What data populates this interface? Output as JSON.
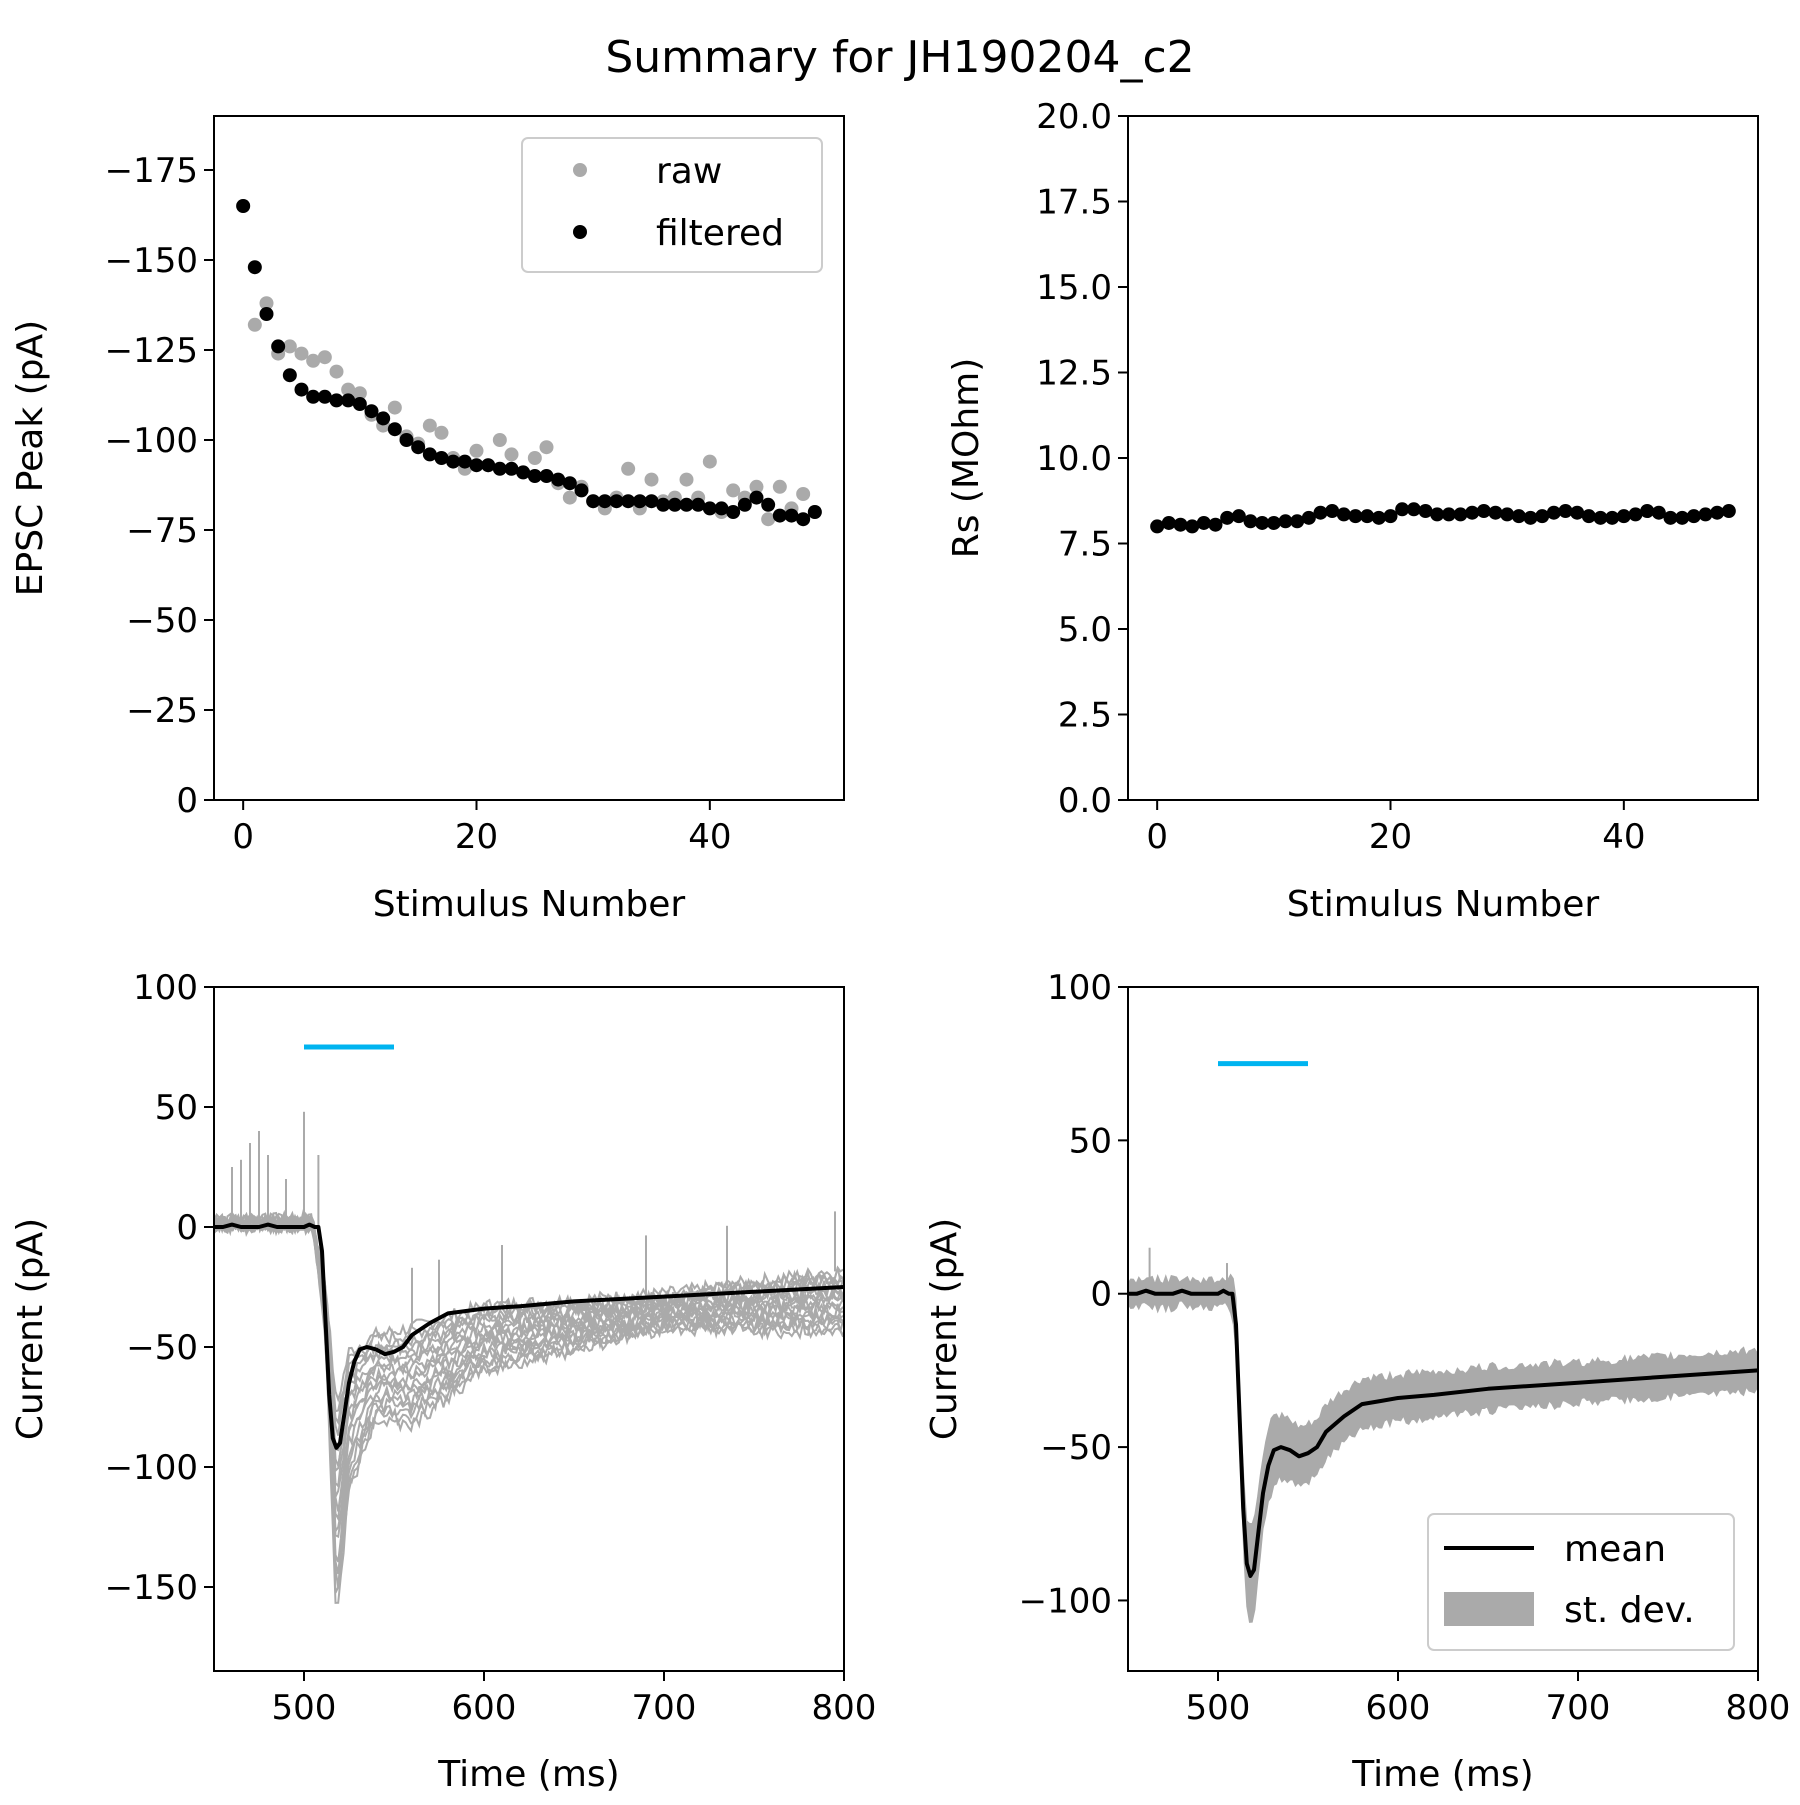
{
  "figure_title": "Summary for JH190204_c2",
  "colors": {
    "raw": "#aaaaaa",
    "filtered": "#000000",
    "mean": "#000000",
    "stdev": "#aaaaaa",
    "stim": "#00b4f0",
    "trace": "#aaaaaa"
  },
  "chart_data": [
    {
      "id": "epsc",
      "type": "scatter",
      "xlabel": "Stimulus Number",
      "ylabel": "EPSC Peak (pA)",
      "xlim": [
        -2.5,
        51.5
      ],
      "ylim": [
        0,
        -190
      ],
      "xticks": [
        0,
        20,
        40
      ],
      "xtick_labels": [
        "0",
        "20",
        "40"
      ],
      "yticks": [
        0,
        -25,
        -50,
        -75,
        -100,
        -125,
        -150,
        -175
      ],
      "ytick_labels": [
        "0",
        "−25",
        "−50",
        "−75",
        "−100",
        "−125",
        "−150",
        "−175"
      ],
      "legend": {
        "placement": "top-right",
        "entries": [
          "raw",
          "filtered"
        ]
      },
      "series": [
        {
          "name": "raw",
          "x": [
            0,
            1,
            2,
            3,
            4,
            5,
            6,
            7,
            8,
            9,
            10,
            11,
            12,
            13,
            14,
            15,
            16,
            17,
            18,
            19,
            20,
            21,
            22,
            23,
            24,
            25,
            26,
            27,
            28,
            29,
            30,
            31,
            32,
            33,
            34,
            35,
            36,
            37,
            38,
            39,
            40,
            41,
            42,
            43,
            44,
            45,
            46,
            47,
            48,
            49
          ],
          "values": [
            -165,
            -132,
            -138,
            -124,
            -126,
            -124,
            -122,
            -123,
            -119,
            -114,
            -113,
            -107,
            -104,
            -109,
            -101,
            -99,
            -104,
            -102,
            -95,
            -92,
            -97,
            -93,
            -100,
            -96,
            -91,
            -95,
            -98,
            -88,
            -84,
            -87,
            -83,
            -81,
            -84,
            -92,
            -81,
            -89,
            -83,
            -84,
            -89,
            -84,
            -94,
            -80,
            -86,
            -84,
            -87,
            -78,
            -87,
            -81,
            -85,
            -80
          ]
        },
        {
          "name": "filtered",
          "x": [
            0,
            1,
            2,
            3,
            4,
            5,
            6,
            7,
            8,
            9,
            10,
            11,
            12,
            13,
            14,
            15,
            16,
            17,
            18,
            19,
            20,
            21,
            22,
            23,
            24,
            25,
            26,
            27,
            28,
            29,
            30,
            31,
            32,
            33,
            34,
            35,
            36,
            37,
            38,
            39,
            40,
            41,
            42,
            43,
            44,
            45,
            46,
            47,
            48,
            49
          ],
          "values": [
            -165,
            -148,
            -135,
            -126,
            -118,
            -114,
            -112,
            -112,
            -111,
            -111,
            -110,
            -108,
            -106,
            -103,
            -100,
            -98,
            -96,
            -95,
            -94,
            -94,
            -93,
            -93,
            -92,
            -92,
            -91,
            -90,
            -90,
            -89,
            -88,
            -86,
            -83,
            -83,
            -83,
            -83,
            -83,
            -83,
            -82,
            -82,
            -82,
            -82,
            -81,
            -81,
            -80,
            -82,
            -84,
            -82,
            -79,
            -79,
            -78,
            -80
          ]
        }
      ]
    },
    {
      "id": "rs",
      "type": "scatter",
      "xlabel": "Stimulus Number",
      "ylabel": "Rs (MOhm)",
      "xlim": [
        -2.5,
        51.5
      ],
      "ylim": [
        0,
        20
      ],
      "xticks": [
        0,
        20,
        40
      ],
      "xtick_labels": [
        "0",
        "20",
        "40"
      ],
      "yticks": [
        0,
        2.5,
        5,
        7.5,
        10,
        12.5,
        15,
        17.5,
        20
      ],
      "ytick_labels": [
        "0.0",
        "2.5",
        "5.0",
        "7.5",
        "10.0",
        "12.5",
        "15.0",
        "17.5",
        "20.0"
      ],
      "series": [
        {
          "name": "Rs",
          "x": [
            0,
            1,
            2,
            3,
            4,
            5,
            6,
            7,
            8,
            9,
            10,
            11,
            12,
            13,
            14,
            15,
            16,
            17,
            18,
            19,
            20,
            21,
            22,
            23,
            24,
            25,
            26,
            27,
            28,
            29,
            30,
            31,
            32,
            33,
            34,
            35,
            36,
            37,
            38,
            39,
            40,
            41,
            42,
            43,
            44,
            45,
            46,
            47,
            48,
            49
          ],
          "values": [
            8.0,
            8.1,
            8.05,
            8.0,
            8.1,
            8.05,
            8.25,
            8.3,
            8.15,
            8.1,
            8.1,
            8.15,
            8.15,
            8.25,
            8.4,
            8.45,
            8.35,
            8.3,
            8.3,
            8.25,
            8.3,
            8.5,
            8.5,
            8.45,
            8.35,
            8.35,
            8.35,
            8.4,
            8.45,
            8.4,
            8.35,
            8.3,
            8.25,
            8.3,
            8.4,
            8.45,
            8.4,
            8.3,
            8.25,
            8.25,
            8.3,
            8.35,
            8.45,
            8.4,
            8.25,
            8.25,
            8.3,
            8.35,
            8.4,
            8.45
          ]
        }
      ]
    },
    {
      "id": "traces",
      "type": "line",
      "xlabel": "Time (ms)",
      "ylabel": "Current (pA)",
      "xlim": [
        450,
        800
      ],
      "ylim": [
        -185,
        100
      ],
      "xticks": [
        500,
        600,
        700,
        800
      ],
      "xtick_labels": [
        "500",
        "600",
        "700",
        "800"
      ],
      "yticks": [
        -150,
        -100,
        -50,
        0,
        50,
        100
      ],
      "ytick_labels": [
        "−150",
        "−100",
        "−50",
        "0",
        "50",
        "100"
      ],
      "stim_bar": {
        "x": [
          500,
          550
        ],
        "y": 75
      },
      "mean": {
        "x": [
          450,
          455,
          460,
          465,
          470,
          475,
          480,
          485,
          490,
          495,
          500,
          503,
          506,
          508,
          510,
          512,
          514,
          516,
          518,
          520,
          522,
          525,
          528,
          531,
          535,
          540,
          545,
          550,
          555,
          560,
          570,
          580,
          590,
          600,
          620,
          650,
          700,
          750,
          800
        ],
        "values": [
          0,
          0,
          1,
          0,
          0,
          0,
          1,
          0,
          0,
          0,
          0,
          1,
          0,
          0,
          -10,
          -40,
          -70,
          -88,
          -92,
          -90,
          -80,
          -65,
          -56,
          -51,
          -50,
          -51,
          -53,
          -52,
          -50,
          -45,
          -40,
          -36,
          -35,
          -34,
          -33,
          -31,
          -29,
          -27,
          -25
        ]
      },
      "trace_spikes": [
        [
          460,
          25
        ],
        [
          465,
          28
        ],
        [
          470,
          35
        ],
        [
          475,
          40
        ],
        [
          480,
          30
        ],
        [
          490,
          20
        ],
        [
          500,
          48
        ],
        [
          508,
          30
        ]
      ],
      "trace_floor": [
        [
          450,
          0
        ],
        [
          505,
          0
        ],
        [
          512,
          -45
        ],
        [
          518,
          -165
        ],
        [
          525,
          -110
        ],
        [
          540,
          -80
        ],
        [
          560,
          -82
        ],
        [
          600,
          -60
        ],
        [
          700,
          -42
        ],
        [
          800,
          -44
        ]
      ],
      "trace_ceiling": [
        [
          450,
          3
        ],
        [
          505,
          3
        ],
        [
          512,
          -25
        ],
        [
          518,
          -75
        ],
        [
          525,
          -52
        ],
        [
          540,
          -45
        ],
        [
          560,
          -42
        ],
        [
          600,
          -33
        ],
        [
          700,
          -28
        ],
        [
          800,
          -18
        ]
      ]
    },
    {
      "id": "mean_sd",
      "type": "line",
      "xlabel": "Time (ms)",
      "ylabel": "Current (pA)",
      "xlim": [
        450,
        800
      ],
      "ylim": [
        -123,
        100
      ],
      "xticks": [
        500,
        600,
        700,
        800
      ],
      "xtick_labels": [
        "500",
        "600",
        "700",
        "800"
      ],
      "yticks": [
        -100,
        -50,
        0,
        50,
        100
      ],
      "ytick_labels": [
        "−100",
        "−50",
        "0",
        "50",
        "100"
      ],
      "stim_bar": {
        "x": [
          500,
          550
        ],
        "y": 75
      },
      "legend": {
        "placement": "bottom-right",
        "entries": [
          "mean",
          "st. dev."
        ]
      },
      "mean": {
        "x": [
          450,
          455,
          460,
          465,
          470,
          475,
          480,
          485,
          490,
          495,
          500,
          503,
          506,
          508,
          510,
          512,
          514,
          516,
          518,
          520,
          522,
          525,
          528,
          531,
          535,
          540,
          545,
          550,
          555,
          560,
          570,
          580,
          590,
          600,
          620,
          650,
          700,
          750,
          800
        ],
        "values": [
          0,
          0,
          1,
          0,
          0,
          0,
          1,
          0,
          0,
          0,
          0,
          1,
          0,
          0,
          -10,
          -40,
          -70,
          -88,
          -92,
          -90,
          -80,
          -65,
          -56,
          -51,
          -50,
          -51,
          -53,
          -52,
          -50,
          -45,
          -40,
          -36,
          -35,
          -34,
          -33,
          -31,
          -29,
          -27,
          -25
        ]
      },
      "stdev_halfwidth": [
        [
          450,
          3
        ],
        [
          505,
          3
        ],
        [
          512,
          8
        ],
        [
          518,
          16
        ],
        [
          525,
          11
        ],
        [
          540,
          8
        ],
        [
          560,
          7
        ],
        [
          600,
          6
        ],
        [
          700,
          5
        ],
        [
          800,
          5
        ]
      ],
      "stdev_spikes": [
        [
          462,
          15
        ],
        [
          505,
          10
        ]
      ]
    }
  ]
}
